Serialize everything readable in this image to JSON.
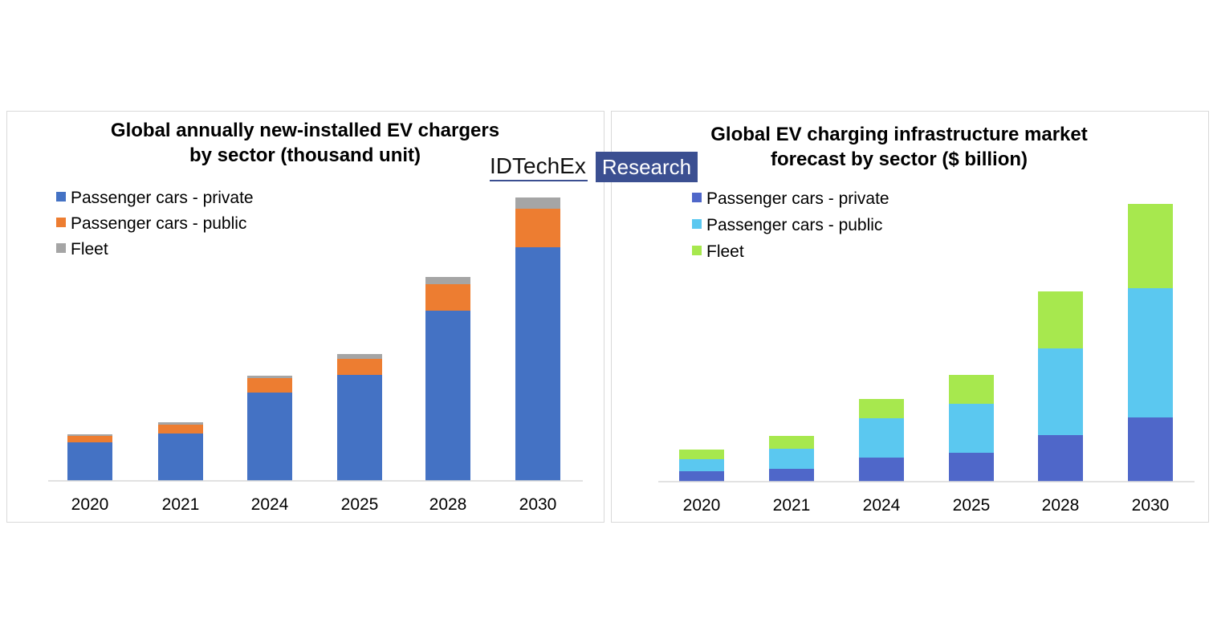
{
  "logo": {
    "name": "IDTechEx",
    "tag": "Research"
  },
  "chart_data": [
    {
      "type": "bar",
      "stacked": true,
      "title": [
        "Global annually new-installed EV chargers",
        "by sector (thousand unit)"
      ],
      "categories": [
        "2020",
        "2021",
        "2024",
        "2025",
        "2028",
        "2030"
      ],
      "series": [
        {
          "name": "Passenger cars - private",
          "color": "#4472c4",
          "values": [
            48,
            59,
            110,
            132,
            212,
            291
          ]
        },
        {
          "name": "Passenger cars - public",
          "color": "#ed7d31",
          "values": [
            8,
            11,
            18,
            20,
            33,
            48
          ]
        },
        {
          "name": "Fleet",
          "color": "#a5a5a5",
          "values": [
            2,
            3,
            3,
            6,
            9,
            14
          ]
        }
      ],
      "ylim": [
        0,
        360
      ],
      "legend": "top-left",
      "grid": false
    },
    {
      "type": "bar",
      "stacked": true,
      "title": [
        "Global EV charging infrastructure market",
        "forecast by sector ($ billion)"
      ],
      "categories": [
        "2020",
        "2021",
        "2024",
        "2025",
        "2028",
        "2030"
      ],
      "series": [
        {
          "name": "Passenger cars - private",
          "color": "#4f67c9",
          "values": [
            13,
            16,
            30,
            36,
            58,
            80
          ]
        },
        {
          "name": "Passenger cars - public",
          "color": "#5bc8f0",
          "values": [
            15,
            25,
            49,
            61,
            108,
            161
          ]
        },
        {
          "name": "Fleet",
          "color": "#a7e84e",
          "values": [
            12,
            16,
            24,
            36,
            71,
            105
          ]
        }
      ],
      "ylim": [
        0,
        360
      ],
      "legend": "top-left",
      "grid": false
    }
  ]
}
